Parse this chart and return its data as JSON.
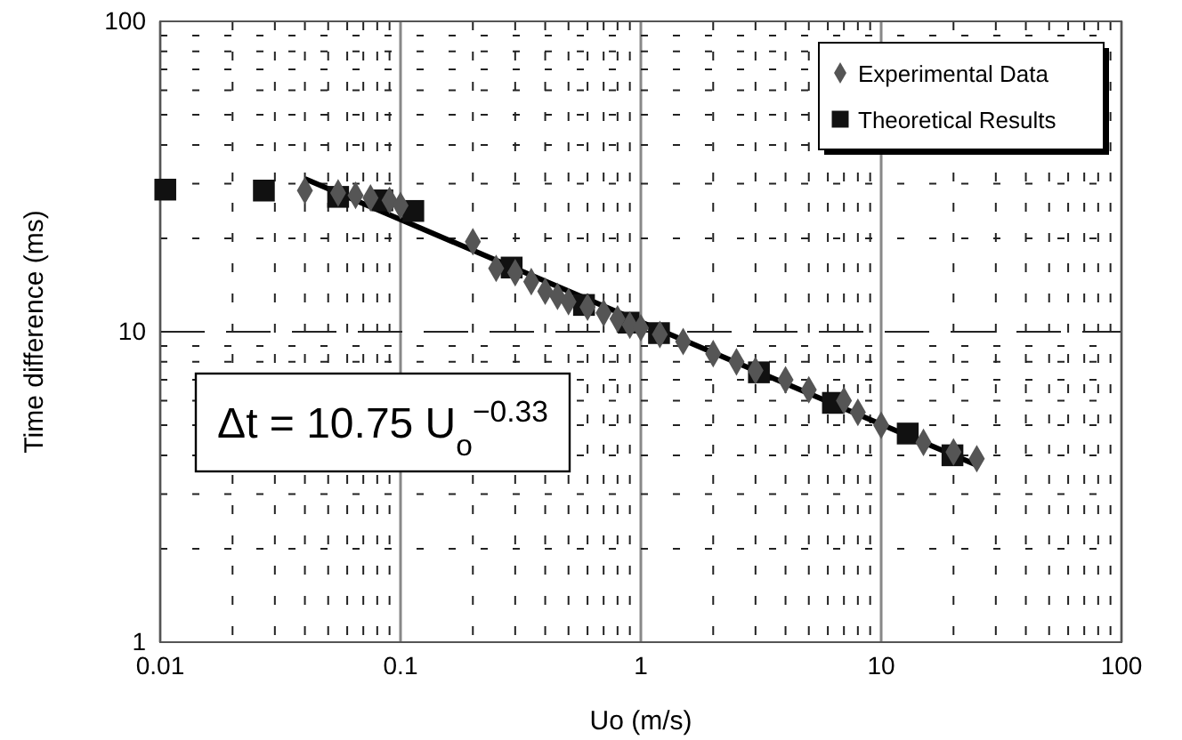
{
  "chart_data": {
    "type": "scatter",
    "xlabel": "Uo (m/s)",
    "ylabel": "Time difference (ms)",
    "log": "xy",
    "grid": true,
    "legend": "top right",
    "xlim": [
      0.01,
      100
    ],
    "ylim": [
      1,
      100
    ],
    "xticks": [
      0.01,
      {
        "value": 0.02,
        "label": null
      },
      {
        "value": 0.03,
        "label": null
      },
      {
        "value": 0.04,
        "label": null
      },
      {
        "value": 0.05,
        "label": null
      },
      {
        "value": 0.06,
        "label": null
      },
      {
        "value": 0.07,
        "label": null
      },
      {
        "value": 0.08,
        "label": null
      },
      {
        "value": 0.09,
        "label": null
      },
      0.1,
      {
        "value": 0.2,
        "label": null
      },
      {
        "value": 0.3,
        "label": null
      },
      {
        "value": 0.4,
        "label": null
      },
      {
        "value": 0.5,
        "label": null
      },
      {
        "value": 0.6,
        "label": null
      },
      {
        "value": 0.7,
        "label": null
      },
      {
        "value": 0.8,
        "label": null
      },
      {
        "value": 0.9,
        "label": null
      },
      1,
      {
        "value": 2,
        "label": null
      },
      {
        "value": 3,
        "label": null
      },
      {
        "value": 4,
        "label": null
      },
      {
        "value": 5,
        "label": null
      },
      {
        "value": 6,
        "label": null
      },
      {
        "value": 7,
        "label": null
      },
      {
        "value": 8,
        "label": null
      },
      {
        "value": 9,
        "label": null
      },
      10,
      {
        "value": 20,
        "label": null
      },
      {
        "value": 30,
        "label": null
      },
      {
        "value": 40,
        "label": null
      },
      {
        "value": 50,
        "label": null
      },
      {
        "value": 60,
        "label": null
      },
      {
        "value": 70,
        "label": null
      },
      {
        "value": 80,
        "label": null
      },
      {
        "value": 90,
        "label": null
      },
      100
    ],
    "yticks": [
      1,
      {
        "value": 2,
        "label": null
      },
      {
        "value": 3,
        "label": null
      },
      {
        "value": 4,
        "label": null
      },
      {
        "value": 5,
        "label": null
      },
      {
        "value": 6,
        "label": null
      },
      {
        "value": 7,
        "label": null
      },
      {
        "value": 8,
        "label": null
      },
      {
        "value": 9,
        "label": null
      },
      10,
      {
        "value": 20,
        "label": null
      },
      {
        "value": 30,
        "label": null
      },
      {
        "value": 40,
        "label": null
      },
      {
        "value": 50,
        "label": null
      },
      {
        "value": 60,
        "label": null
      },
      {
        "value": 70,
        "label": null
      },
      {
        "value": 80,
        "label": null
      },
      {
        "value": 90,
        "label": null
      },
      100
    ],
    "annotations": [
      "Δt = 10.75 U$_{o}$$^{−0.33}$"
    ],
    "series": [
      {
        "name": "Experimental Data",
        "color": "#555555",
        "marker": "diamond",
        "x": [
          0.04,
          0.055,
          0.065,
          0.075,
          0.09,
          0.1,
          0.2,
          0.25,
          0.3,
          0.35,
          0.4,
          0.45,
          0.5,
          0.6,
          0.7,
          0.8,
          0.9,
          1,
          1.2,
          1.5,
          2,
          2.5,
          3,
          4,
          5,
          7,
          8,
          10,
          15,
          20,
          25
        ],
        "values": [
          28.5,
          28,
          27.5,
          27,
          26.5,
          25.5,
          19.5,
          16,
          15.5,
          14.5,
          13.5,
          13,
          12.5,
          12,
          11.5,
          11,
          10.5,
          10.3,
          9.8,
          9.3,
          8.5,
          8,
          7.5,
          7,
          6.5,
          6,
          5.5,
          5,
          4.4,
          4.1,
          3.9
        ]
      },
      {
        "name": "Theoretical Results",
        "color": "#111111",
        "marker": "square",
        "x": [
          0.0105,
          0.027,
          0.055,
          0.084,
          0.113,
          0.29,
          0.58,
          0.89,
          1.19,
          3.1,
          6.3,
          12.9,
          19.8
        ],
        "values": [
          28.7,
          28.5,
          27.2,
          26.5,
          24.5,
          16.1,
          12.2,
          10.7,
          9.9,
          7.4,
          5.9,
          4.7,
          4.0
        ]
      },
      {
        "type": "line",
        "color": "#000000",
        "marker": "none",
        "line_style": "solid",
        "x": [
          0.04,
          25
        ],
        "values": [
          31.1,
          3.72
        ]
      }
    ]
  }
}
